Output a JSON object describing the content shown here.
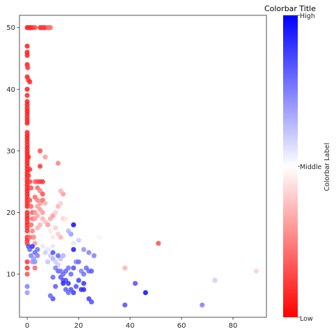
{
  "chart_data": {
    "type": "scatter",
    "xlim": [
      -3,
      93
    ],
    "ylim": [
      3,
      52
    ],
    "x_ticks": [
      0,
      20,
      40,
      60,
      80
    ],
    "y_ticks": [
      10,
      20,
      30,
      40,
      50
    ],
    "grid": false,
    "colormap": {
      "name": "bwr_r",
      "low": "#ff0000",
      "middle": "#ffffff",
      "high": "#0000ff"
    },
    "colorbar": {
      "title": "Colorbar Title",
      "label": "Colorbar Label",
      "tick_labels": {
        "high": "High",
        "middle": "Middle",
        "low": "Low"
      }
    },
    "points": [
      [
        0,
        50,
        0.05
      ],
      [
        0.5,
        50,
        0.08
      ],
      [
        1,
        50,
        0.1
      ],
      [
        1.5,
        50,
        0.06
      ],
      [
        2,
        50,
        0.1
      ],
      [
        3,
        50,
        0.12
      ],
      [
        5,
        50,
        0.1
      ],
      [
        5.5,
        50,
        0.12
      ],
      [
        6,
        50,
        0.1
      ],
      [
        6.5,
        50,
        0.14
      ],
      [
        7,
        50,
        0.1
      ],
      [
        8,
        50,
        0.18
      ],
      [
        8.5,
        50,
        0.2
      ],
      [
        9,
        50,
        0.22
      ],
      [
        0,
        47,
        0.05
      ],
      [
        0,
        46,
        0.05
      ],
      [
        0,
        45.5,
        0.06
      ],
      [
        0,
        44,
        0.05
      ],
      [
        0.2,
        43.5,
        0.1
      ],
      [
        0,
        42,
        0.05
      ],
      [
        0.5,
        41.5,
        0.1
      ],
      [
        1,
        41.2,
        0.08
      ],
      [
        0,
        40,
        0.05
      ],
      [
        0,
        39,
        0.07
      ],
      [
        0,
        38,
        0.05
      ],
      [
        0,
        37.5,
        0.06
      ],
      [
        0,
        37,
        0.08
      ],
      [
        0,
        36.5,
        0.05
      ],
      [
        0,
        36,
        0.06
      ],
      [
        0,
        35.5,
        0.07
      ],
      [
        0,
        35,
        0.06
      ],
      [
        0,
        34.5,
        0.05
      ],
      [
        0,
        33,
        0.07
      ],
      [
        0,
        32.5,
        0.06
      ],
      [
        0,
        32,
        0.05
      ],
      [
        0,
        31.5,
        0.06
      ],
      [
        0,
        31,
        0.08
      ],
      [
        0,
        30.5,
        0.05
      ],
      [
        0,
        30,
        0.06
      ],
      [
        0,
        29.5,
        0.05
      ],
      [
        0,
        29,
        0.07
      ],
      [
        0,
        28.5,
        0.06
      ],
      [
        0,
        28,
        0.05
      ],
      [
        0,
        27.5,
        0.06
      ],
      [
        0,
        27,
        0.07
      ],
      [
        0,
        26.5,
        0.06
      ],
      [
        0,
        26,
        0.05
      ],
      [
        0,
        25.5,
        0.08
      ],
      [
        0,
        25,
        0.05
      ],
      [
        0,
        24.5,
        0.06
      ],
      [
        0,
        24,
        0.07
      ],
      [
        0,
        23.5,
        0.05
      ],
      [
        0,
        23,
        0.06
      ],
      [
        0,
        22.5,
        0.07
      ],
      [
        0,
        22,
        0.06
      ],
      [
        0,
        21.5,
        0.08
      ],
      [
        0,
        21,
        0.06
      ],
      [
        0,
        20,
        0.07
      ],
      [
        0,
        19.5,
        0.08
      ],
      [
        0,
        19,
        0.06
      ],
      [
        0,
        18.5,
        0.09
      ],
      [
        0,
        18,
        0.07
      ],
      [
        0,
        17.5,
        0.1
      ],
      [
        0,
        17,
        0.09
      ],
      [
        0,
        16,
        0.1
      ],
      [
        0,
        15.5,
        0.08
      ],
      [
        0,
        15,
        0.12
      ],
      [
        0,
        12,
        0.1
      ],
      [
        0.5,
        29,
        0.08
      ],
      [
        1,
        27,
        0.1
      ],
      [
        0.5,
        26,
        0.1
      ],
      [
        1,
        25,
        0.12
      ],
      [
        1.5,
        24,
        0.15
      ],
      [
        1,
        22,
        0.15
      ],
      [
        1.5,
        21,
        0.2
      ],
      [
        2,
        20,
        0.18
      ],
      [
        2,
        19,
        0.22
      ],
      [
        1.5,
        18,
        0.2
      ],
      [
        2,
        17,
        0.25
      ],
      [
        2.5,
        16,
        0.25
      ],
      [
        1,
        16,
        0.2
      ],
      [
        3,
        15,
        0.3
      ],
      [
        5,
        30,
        0.15
      ],
      [
        7,
        29,
        0.3
      ],
      [
        5,
        27.5,
        0.1
      ],
      [
        3,
        25,
        0.2
      ],
      [
        4,
        25,
        0.15
      ],
      [
        5,
        25,
        0.12
      ],
      [
        6,
        25,
        0.1
      ],
      [
        4,
        24,
        0.2
      ],
      [
        5,
        23.5,
        0.25
      ],
      [
        6,
        23,
        0.15
      ],
      [
        3,
        22.5,
        0.2
      ],
      [
        4,
        22,
        0.25
      ],
      [
        5,
        21.5,
        0.3
      ],
      [
        6,
        22,
        0.2
      ],
      [
        7,
        21.5,
        0.35
      ],
      [
        4,
        21,
        0.3
      ],
      [
        5,
        20.5,
        0.3
      ],
      [
        6,
        20,
        0.3
      ],
      [
        3,
        20,
        0.28
      ],
      [
        4,
        19.5,
        0.32
      ],
      [
        3,
        19,
        0.3
      ],
      [
        6,
        19,
        0.35
      ],
      [
        7,
        18.5,
        0.38
      ],
      [
        5,
        18,
        0.35
      ],
      [
        4,
        17.5,
        0.35
      ],
      [
        8,
        18,
        0.3
      ],
      [
        9,
        19,
        0.33
      ],
      [
        10,
        19.5,
        0.3
      ],
      [
        11,
        20,
        0.4
      ],
      [
        12,
        21,
        0.35
      ],
      [
        13,
        21.5,
        0.4
      ],
      [
        14,
        23,
        0.3
      ],
      [
        13,
        23.5,
        0.35
      ],
      [
        14,
        19,
        0.4
      ],
      [
        15,
        19,
        0.45
      ],
      [
        12,
        28,
        0.25
      ],
      [
        11,
        17.5,
        0.4
      ],
      [
        13,
        16,
        0.35
      ],
      [
        12,
        16.5,
        0.4
      ],
      [
        10,
        16,
        0.45
      ],
      [
        9,
        17,
        0.45
      ],
      [
        8,
        15.5,
        0.5
      ],
      [
        7,
        15,
        0.5
      ],
      [
        6,
        14.5,
        0.55
      ],
      [
        5,
        14,
        0.5
      ],
      [
        8,
        14,
        0.55
      ],
      [
        9,
        15,
        0.5
      ],
      [
        10,
        14.5,
        0.55
      ],
      [
        11,
        14,
        0.5
      ],
      [
        7,
        13.5,
        0.6
      ],
      [
        9,
        13,
        0.6
      ],
      [
        10,
        12.5,
        0.65
      ],
      [
        11,
        12,
        0.6
      ],
      [
        12,
        11.5,
        0.6
      ],
      [
        8,
        12,
        0.62
      ],
      [
        13,
        12.5,
        0.62
      ],
      [
        14,
        13,
        0.65
      ],
      [
        0.5,
        14.5,
        0.85
      ],
      [
        1,
        14,
        0.8
      ],
      [
        2,
        14.5,
        0.9
      ],
      [
        3,
        13.5,
        0.8
      ],
      [
        1.5,
        13,
        0.75
      ],
      [
        2.5,
        12.5,
        0.7
      ],
      [
        4,
        13,
        0.75
      ],
      [
        2,
        12,
        0.7
      ],
      [
        3,
        12,
        0.72
      ],
      [
        4,
        14,
        0.78
      ],
      [
        18,
        18,
        0.98
      ],
      [
        18,
        14,
        0.95
      ],
      [
        10,
        13.5,
        0.85
      ],
      [
        12,
        13,
        0.8
      ],
      [
        11,
        11,
        0.75
      ],
      [
        12,
        10.5,
        0.8
      ],
      [
        13,
        10.5,
        0.78
      ],
      [
        14,
        10,
        0.8
      ],
      [
        13,
        9.5,
        0.82
      ],
      [
        14,
        9,
        0.85
      ],
      [
        15,
        9,
        0.85
      ],
      [
        16,
        8.5,
        0.9
      ],
      [
        14,
        8.5,
        0.92
      ],
      [
        15,
        10.5,
        0.8
      ],
      [
        16,
        11,
        0.78
      ],
      [
        17,
        10,
        0.8
      ],
      [
        18,
        11,
        0.85
      ],
      [
        19,
        12,
        0.75
      ],
      [
        20,
        12,
        0.8
      ],
      [
        21,
        10.5,
        0.75
      ],
      [
        22,
        10,
        0.78
      ],
      [
        23,
        11,
        0.8
      ],
      [
        24,
        10.5,
        0.8
      ],
      [
        25,
        10.5,
        0.82
      ],
      [
        20,
        9,
        0.88
      ],
      [
        22,
        8.5,
        0.9
      ],
      [
        21,
        7.5,
        0.9
      ],
      [
        22,
        7.5,
        0.92
      ],
      [
        17,
        7.5,
        0.85
      ],
      [
        18,
        7,
        0.88
      ],
      [
        19,
        8,
        0.85
      ],
      [
        16,
        7,
        0.8
      ],
      [
        15,
        7.5,
        0.82
      ],
      [
        10,
        6,
        0.85
      ],
      [
        9,
        6.5,
        0.8
      ],
      [
        11,
        8,
        0.82
      ],
      [
        10,
        9.5,
        0.8
      ],
      [
        24,
        6,
        0.88
      ],
      [
        25,
        5.5,
        0.85
      ],
      [
        26,
        13,
        0.75
      ],
      [
        22,
        14,
        0.72
      ],
      [
        24,
        13.5,
        0.75
      ],
      [
        20,
        15.5,
        0.6
      ],
      [
        18,
        15,
        0.55
      ],
      [
        17,
        16.5,
        0.7
      ],
      [
        16,
        17,
        0.65
      ],
      [
        38,
        5,
        0.85
      ],
      [
        42,
        8.5,
        0.85
      ],
      [
        46,
        7,
        0.98
      ],
      [
        68,
        5,
        0.75
      ],
      [
        73,
        9,
        0.6
      ],
      [
        38,
        11,
        0.35
      ],
      [
        51,
        15,
        0.15
      ],
      [
        89,
        10.5,
        0.4
      ],
      [
        0,
        8,
        0.75
      ],
      [
        0,
        7,
        0.7
      ],
      [
        0,
        11,
        0.1
      ],
      [
        0,
        10,
        0.15
      ],
      [
        3,
        11,
        0.2
      ],
      [
        28,
        16,
        0.52
      ],
      [
        30,
        15,
        0.5
      ]
    ]
  }
}
